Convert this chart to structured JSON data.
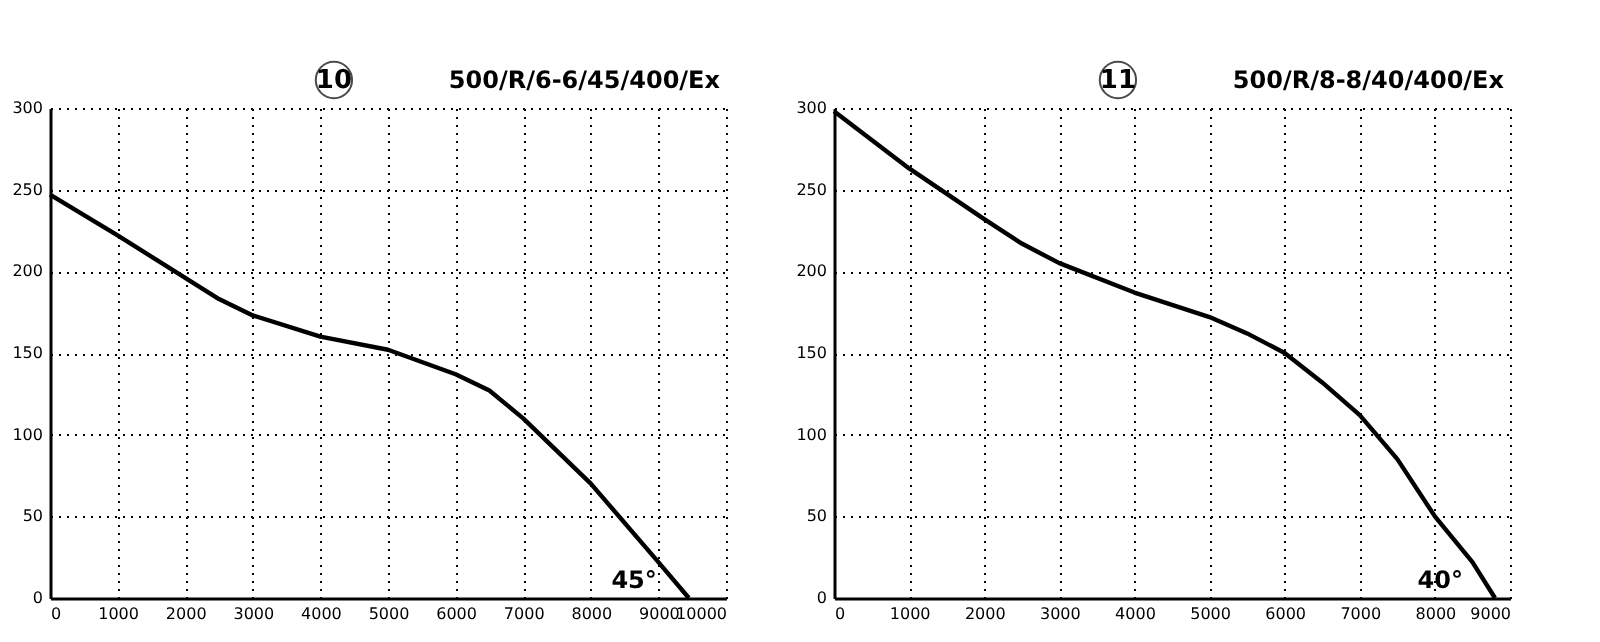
{
  "chart_data": [
    {
      "type": "line",
      "title": "10",
      "subtitle": "500/R/6-6/45/400/Ex",
      "annotations": [
        {
          "text": "45°",
          "x": 9450,
          "y": 0
        }
      ],
      "x": [
        0,
        1000,
        2000,
        2500,
        3000,
        4000,
        5000,
        6000,
        6500,
        7000,
        8000,
        9000,
        9450
      ],
      "series": [
        {
          "color": "#000000",
          "values": [
            247,
            222,
            196,
            183,
            173,
            160,
            152,
            137,
            127,
            110,
            70,
            22,
            0
          ]
        }
      ],
      "xlim": [
        0,
        10000
      ],
      "xticks": [
        0,
        1000,
        2000,
        3000,
        4000,
        5000,
        6000,
        7000,
        8000,
        9000,
        10000
      ],
      "ylim": [
        0,
        300
      ],
      "yticks": [
        0,
        50,
        100,
        150,
        200,
        250,
        300
      ],
      "grid": true,
      "marker": "none",
      "line_style": "solid"
    },
    {
      "type": "line",
      "title": "11",
      "subtitle": "500/R/8-8/40/400/Ex",
      "annotations": [
        {
          "text": "40°",
          "x": 8800,
          "y": 0
        }
      ],
      "x": [
        0,
        1000,
        2000,
        2500,
        3000,
        4000,
        5000,
        5500,
        6000,
        6500,
        7000,
        7500,
        8000,
        8500,
        8800
      ],
      "series": [
        {
          "color": "#000000",
          "values": [
            298,
            263,
            232,
            217,
            205,
            187,
            172,
            162,
            150,
            132,
            112,
            85,
            50,
            22,
            0
          ]
        }
      ],
      "xlim": [
        0,
        9000
      ],
      "xticks": [
        0,
        1000,
        2000,
        3000,
        4000,
        5000,
        6000,
        7000,
        8000,
        9000
      ],
      "ylim": [
        0,
        300
      ],
      "yticks": [
        0,
        50,
        100,
        150,
        200,
        250,
        300
      ],
      "grid": true,
      "marker": "none",
      "line_style": "solid"
    }
  ]
}
